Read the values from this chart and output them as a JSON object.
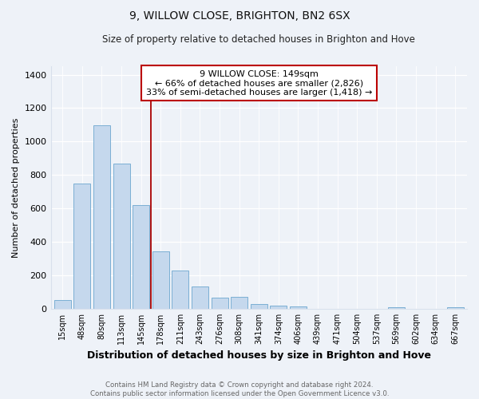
{
  "title": "9, WILLOW CLOSE, BRIGHTON, BN2 6SX",
  "subtitle": "Size of property relative to detached houses in Brighton and Hove",
  "xlabel": "Distribution of detached houses by size in Brighton and Hove",
  "ylabel": "Number of detached properties",
  "bar_labels": [
    "15sqm",
    "48sqm",
    "80sqm",
    "113sqm",
    "145sqm",
    "178sqm",
    "211sqm",
    "243sqm",
    "276sqm",
    "308sqm",
    "341sqm",
    "374sqm",
    "406sqm",
    "439sqm",
    "471sqm",
    "504sqm",
    "537sqm",
    "569sqm",
    "602sqm",
    "634sqm",
    "667sqm"
  ],
  "bar_values": [
    52,
    750,
    1095,
    870,
    620,
    345,
    228,
    132,
    65,
    72,
    28,
    18,
    15,
    2,
    0,
    0,
    0,
    10,
    0,
    0,
    10
  ],
  "bar_color": "#c5d8ed",
  "bar_edge_color": "#7bafd4",
  "vline_x": 4.5,
  "vline_color": "#aa0000",
  "annotation_line1": "9 WILLOW CLOSE: 149sqm",
  "annotation_line2": "← 66% of detached houses are smaller (2,826)",
  "annotation_line3": "33% of semi-detached houses are larger (1,418) →",
  "annotation_box_color": "#ffffff",
  "annotation_box_edgecolor": "#bb0000",
  "ylim": [
    0,
    1450
  ],
  "yticks": [
    0,
    200,
    400,
    600,
    800,
    1000,
    1200,
    1400
  ],
  "footnote": "Contains HM Land Registry data © Crown copyright and database right 2024.\nContains public sector information licensed under the Open Government Licence v3.0.",
  "bg_color": "#eef2f8",
  "grid_color": "#d8e0ec"
}
